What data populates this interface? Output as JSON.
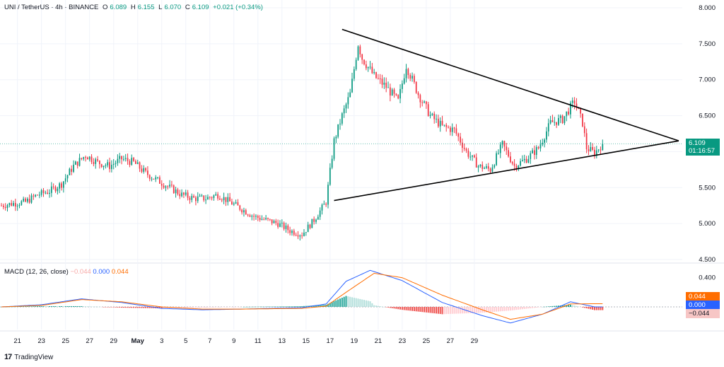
{
  "header": {
    "symbol": "UNI / TetherUS · 4h · BINANCE",
    "open_label": "O",
    "open": "6.089",
    "high_label": "H",
    "high": "6.155",
    "low_label": "L",
    "low": "6.070",
    "close_label": "C",
    "close": "6.109",
    "change": "+0.021 (+0.34%)"
  },
  "price_tag": {
    "price": "6.109",
    "countdown": "01:16:57"
  },
  "macd_header": {
    "label": "MACD (12, 26, close)",
    "hist": "−0.044",
    "macd": "0.000",
    "signal": "0.044"
  },
  "macd_tags": {
    "signal": "0.044",
    "macd": "0.000",
    "hist": "−0.044"
  },
  "logo": {
    "mark": "17",
    "text": "TradingView"
  },
  "colors": {
    "up": "#089981",
    "down": "#f23645",
    "macd": "#2962ff",
    "signal": "#ff6d00",
    "hist_up": "#26a69a",
    "hist_down": "#ef5350"
  },
  "chart_data": {
    "type": "candlestick",
    "title": "UNI / TetherUS · 4h · BINANCE",
    "y_ticks": [
      4.5,
      5.0,
      5.5,
      6.0,
      6.5,
      7.0,
      7.5,
      8.0
    ],
    "y_tick_labels": [
      "4.500",
      "5.000",
      "5.500",
      "6.000",
      "6.500",
      "7.000",
      "7.500",
      "8.000"
    ],
    "ylim": [
      4.5,
      8.0
    ],
    "x_ticks": [
      "21",
      "23",
      "25",
      "27",
      "29",
      "May",
      "3",
      "5",
      "7",
      "9",
      "11",
      "13",
      "15",
      "17",
      "19",
      "21",
      "23",
      "25",
      "27",
      "29"
    ],
    "close_path": [
      [
        0,
        5.25
      ],
      [
        6,
        5.28
      ],
      [
        12,
        5.3
      ],
      [
        18,
        5.4
      ],
      [
        24,
        5.45
      ],
      [
        30,
        5.55
      ],
      [
        36,
        5.8
      ],
      [
        42,
        5.95
      ],
      [
        48,
        5.85
      ],
      [
        54,
        5.8
      ],
      [
        60,
        5.9
      ],
      [
        66,
        5.85
      ],
      [
        72,
        5.7
      ],
      [
        78,
        5.6
      ],
      [
        84,
        5.5
      ],
      [
        90,
        5.4
      ],
      [
        96,
        5.35
      ],
      [
        102,
        5.35
      ],
      [
        108,
        5.4
      ],
      [
        114,
        5.3
      ],
      [
        120,
        5.2
      ],
      [
        126,
        5.1
      ],
      [
        132,
        5.05
      ],
      [
        138,
        5.0
      ],
      [
        144,
        4.9
      ],
      [
        150,
        4.85
      ],
      [
        156,
        5.05
      ],
      [
        162,
        5.3
      ],
      [
        166,
        6.15
      ],
      [
        170,
        6.5
      ],
      [
        174,
        6.8
      ],
      [
        178,
        7.5
      ],
      [
        180,
        7.3
      ],
      [
        186,
        7.05
      ],
      [
        192,
        6.9
      ],
      [
        198,
        6.7
      ],
      [
        202,
        7.2
      ],
      [
        208,
        6.8
      ],
      [
        214,
        6.5
      ],
      [
        220,
        6.35
      ],
      [
        226,
        6.3
      ],
      [
        232,
        6.0
      ],
      [
        238,
        5.8
      ],
      [
        244,
        5.75
      ],
      [
        250,
        6.1
      ],
      [
        256,
        5.8
      ],
      [
        262,
        5.9
      ],
      [
        268,
        6.05
      ],
      [
        274,
        6.4
      ],
      [
        280,
        6.45
      ],
      [
        286,
        6.7
      ],
      [
        290,
        6.4
      ],
      [
        292,
        6.05
      ],
      [
        296,
        5.98
      ],
      [
        300,
        6.109
      ]
    ],
    "triangle_upper": [
      [
        170,
        7.7
      ],
      [
        338,
        6.15
      ]
    ],
    "triangle_lower": [
      [
        166,
        5.32
      ],
      [
        338,
        6.15
      ]
    ],
    "current_price": 6.109,
    "macd": {
      "title": "MACD (12, 26, close)",
      "y_ticks": [
        0.4,
        0.0,
        -0.044
      ],
      "ylim": [
        -0.3,
        0.6
      ],
      "macd_line": [
        [
          0,
          0.0
        ],
        [
          20,
          0.03
        ],
        [
          40,
          0.11
        ],
        [
          60,
          0.06
        ],
        [
          80,
          -0.02
        ],
        [
          100,
          -0.04
        ],
        [
          120,
          -0.03
        ],
        [
          150,
          -0.01
        ],
        [
          162,
          0.04
        ],
        [
          172,
          0.35
        ],
        [
          184,
          0.5
        ],
        [
          200,
          0.36
        ],
        [
          220,
          0.06
        ],
        [
          240,
          -0.12
        ],
        [
          254,
          -0.22
        ],
        [
          270,
          -0.1
        ],
        [
          284,
          0.07
        ],
        [
          296,
          0.0
        ]
      ],
      "signal_line": [
        [
          0,
          0.0
        ],
        [
          20,
          0.02
        ],
        [
          40,
          0.1
        ],
        [
          60,
          0.07
        ],
        [
          80,
          0.0
        ],
        [
          100,
          -0.03
        ],
        [
          120,
          -0.03
        ],
        [
          150,
          -0.02
        ],
        [
          162,
          0.01
        ],
        [
          172,
          0.2
        ],
        [
          186,
          0.46
        ],
        [
          200,
          0.4
        ],
        [
          220,
          0.16
        ],
        [
          240,
          -0.04
        ],
        [
          254,
          -0.17
        ],
        [
          270,
          -0.1
        ],
        [
          284,
          0.04
        ],
        [
          296,
          0.044
        ]
      ]
    }
  }
}
